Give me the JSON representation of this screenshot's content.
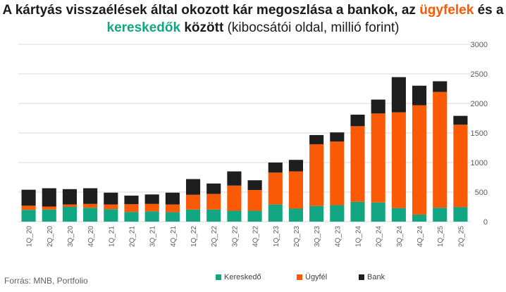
{
  "title": {
    "part1": "A kártyás visszaélések által okozott kár megoszlása a bankok, az",
    "highlight1": "ügyfelek",
    "part2": "és a",
    "highlight2": "kereskedők",
    "part3": "között",
    "part4": "(kibocsátói oldal, millió forint)"
  },
  "source": "Forrás:  MNB, Portfolio",
  "colors": {
    "keresked": "#12a782",
    "ugyfel": "#fa5a06",
    "bank": "#1e1e1e",
    "grid": "#d9d9d9",
    "axis_text": "#595959"
  },
  "chart_data": {
    "type": "bar",
    "stacked": true,
    "categories": [
      "1Q_20",
      "2Q_20",
      "3Q_20",
      "4Q_20",
      "1Q_21",
      "2Q_21",
      "3Q_21",
      "4Q_21",
      "1Q_22",
      "2Q_22",
      "3Q_22",
      "4Q_22",
      "1Q_23",
      "2Q_23",
      "3Q_23",
      "4Q_23",
      "1Q_24",
      "2Q_24",
      "3Q_24",
      "4Q_24",
      "1Q_25",
      "2Q_25"
    ],
    "series": [
      {
        "name": "Kereskedő",
        "values": [
          200,
          205,
          250,
          235,
          210,
          165,
          175,
          160,
          205,
          205,
          185,
          185,
          290,
          220,
          265,
          280,
          335,
          325,
          230,
          120,
          235,
          245
        ]
      },
      {
        "name": "Ügyfél",
        "values": [
          70,
          50,
          40,
          65,
          80,
          130,
          125,
          130,
          250,
          265,
          425,
          350,
          540,
          630,
          1045,
          1075,
          1280,
          1505,
          1620,
          1850,
          1960,
          1395
        ]
      },
      {
        "name": "Bank",
        "values": [
          270,
          310,
          260,
          265,
          200,
          145,
          160,
          200,
          265,
          175,
          240,
          165,
          170,
          195,
          155,
          155,
          195,
          235,
          595,
          330,
          180,
          150
        ]
      }
    ],
    "ylim": [
      0,
      3000
    ],
    "yticks": [
      0,
      500,
      1000,
      1500,
      2000,
      2500,
      3000
    ],
    "ytick_labels": [
      "0",
      "500",
      "1000",
      "1500",
      "2000",
      "2500",
      "3000"
    ],
    "grid": true,
    "legend_position": "bottom",
    "xlabel": "",
    "ylabel": ""
  }
}
